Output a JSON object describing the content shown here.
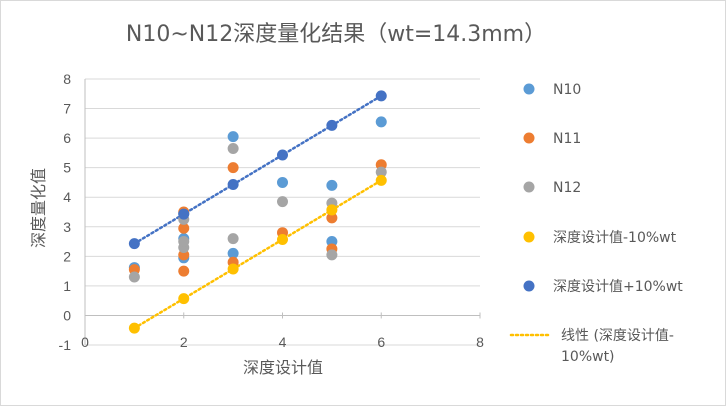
{
  "chart_data": {
    "type": "scatter",
    "title": "N10~N12深度量化结果（wt=14.3mm）",
    "xlabel": "深度设计值",
    "ylabel": "深度量化值",
    "xlim": [
      0,
      8
    ],
    "ylim": [
      -1,
      8
    ],
    "x_ticks": [
      "0",
      "2",
      "4",
      "6",
      "8"
    ],
    "y_ticks": [
      "-1",
      "0",
      "1",
      "2",
      "3",
      "4",
      "5",
      "6",
      "7",
      "8"
    ],
    "grid": "horizontal",
    "legend_position": "right",
    "series": [
      {
        "name": "N10",
        "color": "#5b9bd5",
        "points": [
          [
            1,
            1.62
          ],
          [
            2,
            1.95
          ],
          [
            2,
            2.6
          ],
          [
            2,
            3.45
          ],
          [
            3,
            2.1
          ],
          [
            3,
            6.05
          ],
          [
            4,
            4.5
          ],
          [
            5,
            4.4
          ],
          [
            5,
            2.5
          ],
          [
            6,
            6.55
          ]
        ]
      },
      {
        "name": "N11",
        "color": "#ed7d31",
        "points": [
          [
            1,
            1.55
          ],
          [
            2,
            1.5
          ],
          [
            2,
            2.05
          ],
          [
            2,
            2.95
          ],
          [
            2,
            3.5
          ],
          [
            3,
            1.8
          ],
          [
            3,
            5.0
          ],
          [
            4,
            2.8
          ],
          [
            5,
            3.3
          ],
          [
            5,
            2.25
          ],
          [
            6,
            5.1
          ]
        ]
      },
      {
        "name": "N12",
        "color": "#a5a5a5",
        "points": [
          [
            1,
            1.3
          ],
          [
            2,
            2.3
          ],
          [
            2,
            2.5
          ],
          [
            2,
            3.25
          ],
          [
            3,
            2.6
          ],
          [
            3,
            5.65
          ],
          [
            4,
            3.85
          ],
          [
            5,
            3.8
          ],
          [
            5,
            2.05
          ],
          [
            6,
            4.85
          ]
        ]
      },
      {
        "name": "深度设计值-10%wt",
        "color": "#ffc000",
        "points": [
          [
            1,
            -0.43
          ],
          [
            2,
            0.57
          ],
          [
            3,
            1.57
          ],
          [
            4,
            2.57
          ],
          [
            5,
            3.57
          ],
          [
            6,
            4.57
          ]
        ]
      },
      {
        "name": "深度设计值+10%wt",
        "color": "#4472c4",
        "points": [
          [
            1,
            2.43
          ],
          [
            2,
            3.43
          ],
          [
            3,
            4.43
          ],
          [
            4,
            5.43
          ],
          [
            5,
            6.43
          ],
          [
            6,
            7.43
          ]
        ]
      }
    ],
    "trendlines": [
      {
        "series": "深度设计值-10%wt",
        "color": "#ffc000",
        "from": [
          1,
          -0.43
        ],
        "to": [
          6,
          4.57
        ],
        "style": "dotted",
        "legend_label_line1": "线性 (深度设计值-",
        "legend_label_line2": "10%wt)"
      },
      {
        "series": "深度设计值+10%wt",
        "color": "#4472c4",
        "from": [
          1,
          2.43
        ],
        "to": [
          6,
          7.43
        ],
        "style": "dotted",
        "legend_label_line1": "",
        "legend_label_line2": ""
      }
    ]
  }
}
